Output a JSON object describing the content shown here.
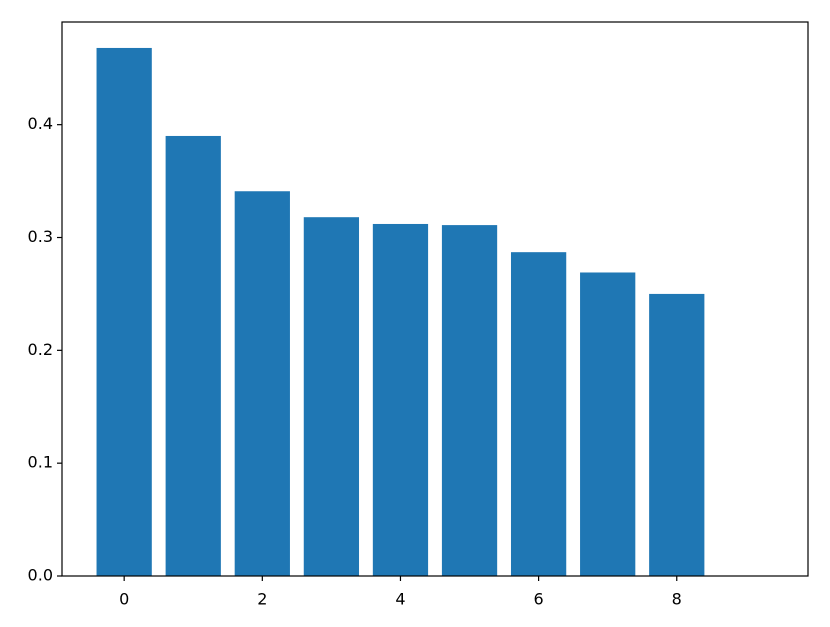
{
  "chart_data": {
    "type": "bar",
    "x": [
      0,
      1,
      2,
      3,
      4,
      5,
      6,
      7,
      8,
      9
    ],
    "values": [
      0.468,
      0.39,
      0.341,
      0.318,
      0.312,
      0.311,
      0.287,
      0.269,
      0.25,
      0
    ],
    "color": "#1f77b4",
    "xlim": [
      -0.9,
      9.9
    ],
    "xticks": [
      0,
      2,
      4,
      6,
      8
    ],
    "ylim": [
      0,
      0.491
    ],
    "yticks": [
      {
        "value": 0,
        "label": "0.0"
      },
      0.1,
      0.2,
      0.3,
      0.4
    ]
  }
}
